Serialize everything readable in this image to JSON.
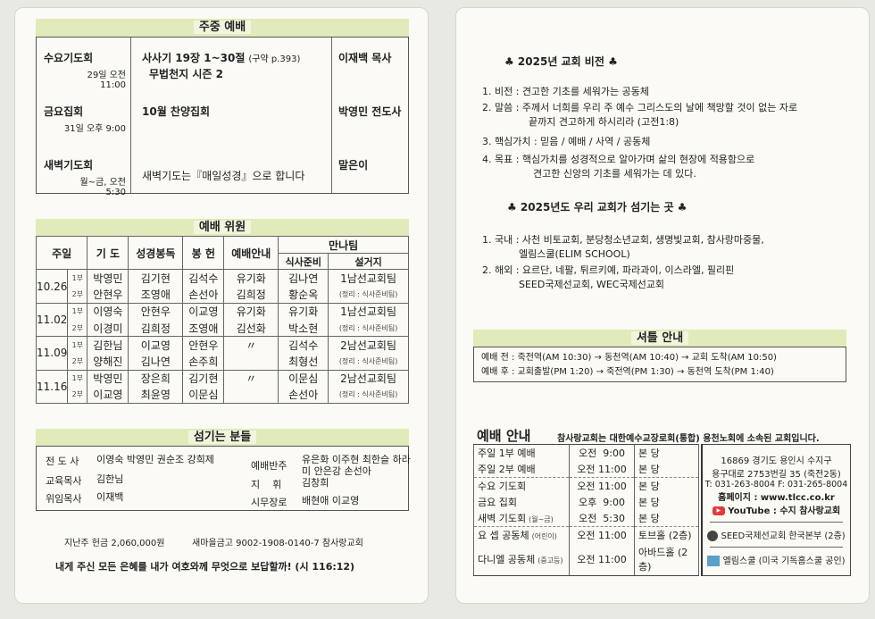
{
  "weekday": {
    "title": "주중 예배",
    "rows": [
      {
        "name": "수요기도회",
        "time": "29일 오전 11:00",
        "content": "사사기 19장 1~30절",
        "ref": "(구약 p.393)",
        "content2": "무법천지 시즌 2",
        "speaker": "이재백 목사"
      },
      {
        "name": "금요집회",
        "time": "31일 오후 9:00",
        "content": "10월 찬양집회",
        "ref": "",
        "content2": "",
        "speaker": "박영민 전도사"
      },
      {
        "name": "새벽기도회",
        "time": "월~금, 오전 5:30",
        "content": "새벽기도는『매일성경』으로 합니다",
        "ref": "",
        "content2": "",
        "speaker": "말은이"
      }
    ]
  },
  "committee": {
    "title": "예배 위원",
    "headers": [
      "주일",
      "기 도",
      "성경봉독",
      "봉 헌",
      "예배안내",
      "만나팀",
      "식사준비",
      "설거지"
    ],
    "rows": [
      {
        "date": "10.26",
        "parts": [
          [
            "1부",
            "박영민",
            "김기현",
            "김석수",
            "유기화",
            "김나연",
            "1남선교회팀"
          ],
          [
            "2부",
            "안현우",
            "조영애",
            "손선아",
            "김희정",
            "황순옥",
            "(정리 : 식사준비팀)"
          ]
        ]
      },
      {
        "date": "11.02",
        "parts": [
          [
            "1부",
            "이영숙",
            "안현우",
            "이교영",
            "유기화",
            "유기화",
            "1남선교회팀"
          ],
          [
            "2부",
            "이경미",
            "김희정",
            "조영애",
            "김선화",
            "박소현",
            "(정리 : 식사준비팀)"
          ]
        ]
      },
      {
        "date": "11.09",
        "parts": [
          [
            "1부",
            "김한님",
            "이교영",
            "안현우",
            "〃",
            "김석수",
            "2남선교회팀"
          ],
          [
            "2부",
            "양해진",
            "김나연",
            "손주희",
            "",
            "최형선",
            "(정리 : 식사준비팀)"
          ]
        ]
      },
      {
        "date": "11.16",
        "parts": [
          [
            "1부",
            "박영민",
            "장은희",
            "김기현",
            "〃",
            "이문심",
            "2남선교회팀"
          ],
          [
            "2부",
            "이교영",
            "최윤영",
            "이문심",
            "",
            "손선아",
            "(정리 : 식사준비팀)"
          ]
        ]
      }
    ]
  },
  "servants": {
    "title": "섬기는 분들",
    "items": [
      {
        "role": "전 도 사",
        "names": "이영숙 박영민 권순조 강희제"
      },
      {
        "role": "예배반주",
        "names": "유은화 이주현 최한슬 하라미 안은강 손선아"
      },
      {
        "role": "교육목사",
        "names": "김한님"
      },
      {
        "role": "지    휘",
        "names": "김창희"
      },
      {
        "role": "위임목사",
        "names": "이재백"
      },
      {
        "role": "시무장로",
        "names": "배현애 이교영"
      }
    ]
  },
  "offering": "지난주 헌금  2,060,000원",
  "account": "새마을금고 9002-1908-0140-7 참사랑교회",
  "verse": "내게 주신 모든 은혜를 내가 여호와께 무엇으로 보답할까! (시 116:12)",
  "vision": {
    "title": "♣ 2025년 교회 비전 ♣",
    "items": [
      [
        "1. 비전 : 견고한 기초를 세워가는 공동체",
        ""
      ],
      [
        "2. 말씀 : 주께서 너희를 우리 주 예수 그리스도의 날에 책망할 것이 없는 자로",
        "끝까지 견고하게 하시리라 (고전1:8)"
      ],
      [
        "3. 핵심가치 : 믿음 / 예배 / 사역 / 공동체",
        ""
      ],
      [
        "4. 목표 : 핵심가치를 성경적으로 알아가며 삶의 현장에 적용함으로",
        "견고한 신앙의 기초를 세워가는 데 있다."
      ]
    ]
  },
  "mission": {
    "title": "♣ 2025년도 우리 교회가 섬기는 곳 ♣",
    "items": [
      [
        "1. 국내 : 사천 비토교회, 분당청소년교회, 생명빛교회, 참사랑마중물,",
        "엘림스쿨(ELIM SCHOOL)"
      ],
      [
        "2. 해외 : 요르단, 네팔, 튀르키예, 파라과이, 이스라엘, 필리핀",
        "SEED국제선교회, WEC국제선교회"
      ]
    ]
  },
  "shuttle": {
    "title": "셔틀 안내",
    "lines": [
      "예배 전 : 죽전역(AM 10:30)  → 동천역(AM 10:40) → 교회 도착(AM 10:50)",
      "예배 후 : 교회출발(PM 1:20) → 죽전역(PM 1:30)  → 동천역 도착(PM 1:40)"
    ]
  },
  "services": {
    "title": "예배 안내",
    "affiliation": "참사랑교회는 대한예수교장로회(통합) 용천노회에 소속된 교회입니다.",
    "rows": [
      [
        "주일 1부 예배",
        "",
        "오전  9:00",
        "본 당"
      ],
      [
        "주일 2부 예배",
        "",
        "오전 11:00",
        "본 당"
      ],
      [
        "수요 기도회",
        "",
        "오전 11:00",
        "본 당"
      ],
      [
        "금요 집회",
        "",
        "오후  9:00",
        "본 당"
      ],
      [
        "새벽 기도회",
        "(월~금)",
        "오전  5:30",
        "본 당"
      ],
      [
        "요  셉 공동체",
        "(어린이)",
        "오전 11:00",
        "토브홀 (2층)"
      ],
      [
        "다니엘 공동체",
        "(중고등)",
        "오전 11:00",
        "아바드홀 (2층)"
      ]
    ]
  },
  "contact": {
    "address1": "16869 경기도 용인시 수지구",
    "address2": "용구대로 2753번길 35 (죽전2동)",
    "phone": "T: 031-263-8004  F: 031-265-8004",
    "homepage": "홈페이지 : www.tlcc.co.kr",
    "youtube_brand": "YouTube",
    "youtube": ": 수지 참사랑교회",
    "seed": "SEED국제선교회 한국본부 (2층)",
    "elim": "엘림스쿨 (미국 기독홈스쿨 공인)"
  },
  "colors": {
    "header_green": "#e0ebb9",
    "youtube_red": "#e03a3a"
  }
}
